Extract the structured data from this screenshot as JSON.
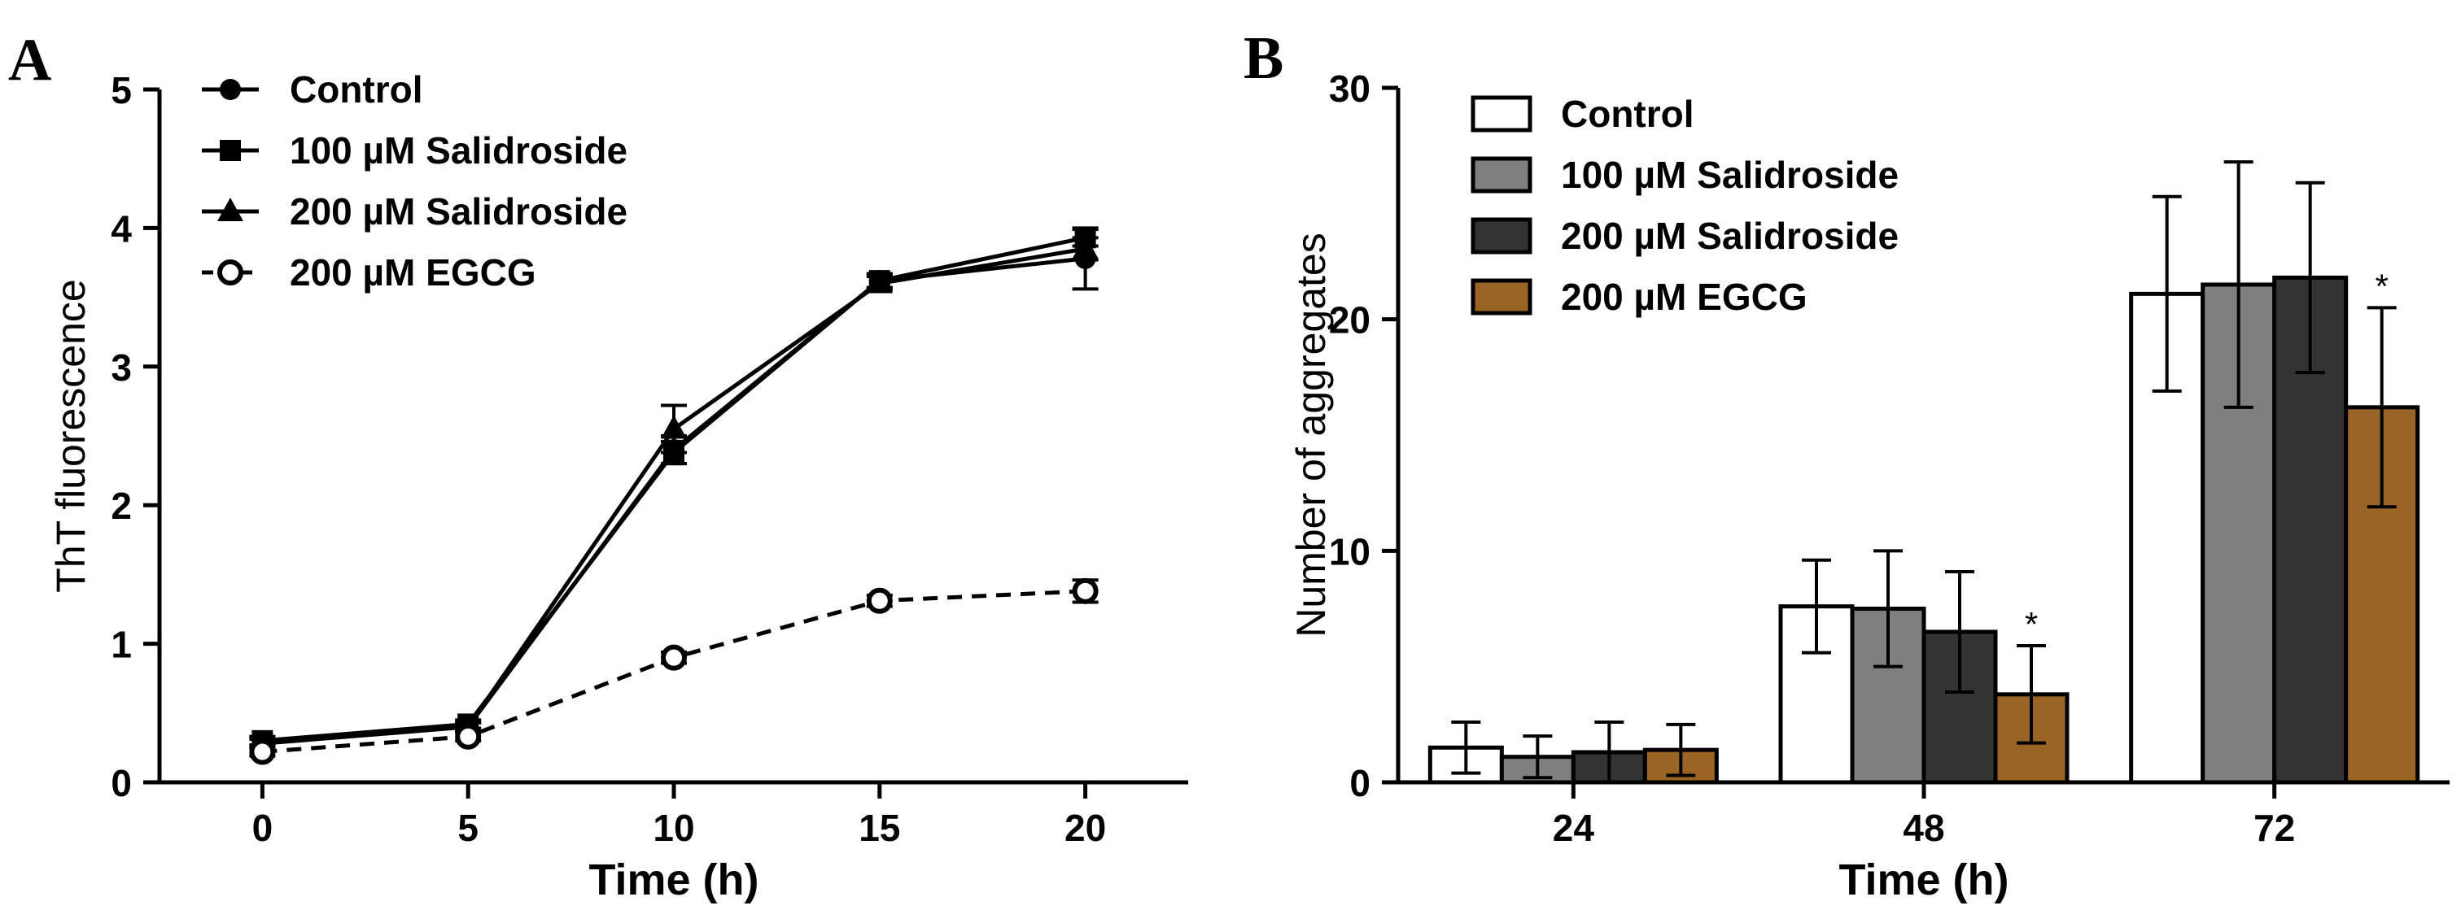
{
  "panels": {
    "a": {
      "letter": "A"
    },
    "b": {
      "letter": "B"
    }
  },
  "chart_data": [
    {
      "type": "line",
      "panel": "A",
      "title": "",
      "xlabel": "Time (h)",
      "ylabel": "ThT fluorescence",
      "x": [
        0,
        5,
        10,
        15,
        20
      ],
      "xticks": [
        "0",
        "5",
        "10",
        "15",
        "20"
      ],
      "xlim": [
        -2.5,
        22.5
      ],
      "yticks": [
        "0",
        "1",
        "2",
        "3",
        "4",
        "5"
      ],
      "ylim": [
        0,
        5
      ],
      "legend_position": "top-left",
      "series": [
        {
          "name": "Control",
          "marker": "filled-circle",
          "line": "solid",
          "values": [
            0.3,
            0.4,
            2.4,
            3.62,
            3.78
          ],
          "errors": [
            0.03,
            0.03,
            0.1,
            0.05,
            0.22
          ]
        },
        {
          "name": "100 µM Salidroside",
          "marker": "filled-square",
          "line": "solid",
          "values": [
            0.3,
            0.42,
            2.38,
            3.62,
            3.93
          ],
          "errors": [
            0.03,
            0.03,
            0.08,
            0.05,
            0.06
          ]
        },
        {
          "name": "200 µM Salidroside",
          "marker": "filled-triangle",
          "line": "solid",
          "values": [
            0.28,
            0.4,
            2.55,
            3.6,
            3.85
          ],
          "errors": [
            0.03,
            0.03,
            0.17,
            0.05,
            0.08
          ]
        },
        {
          "name": "200 µM EGCG",
          "marker": "open-circle",
          "line": "dashed",
          "values": [
            0.22,
            0.33,
            0.9,
            1.31,
            1.38
          ],
          "errors": [
            0.03,
            0.03,
            0.04,
            0.04,
            0.08
          ]
        }
      ]
    },
    {
      "type": "bar",
      "panel": "B",
      "title": "",
      "xlabel": "Time (h)",
      "ylabel": "Number of aggregates",
      "categories": [
        "24",
        "48",
        "72"
      ],
      "yticks": [
        "0",
        "10",
        "20",
        "30"
      ],
      "ylim": [
        0,
        30
      ],
      "legend_position": "top-left",
      "series": [
        {
          "name": "Control",
          "color": "#ffffff",
          "values": [
            1.5,
            7.6,
            21.1
          ],
          "errors": [
            1.1,
            2.0,
            4.2
          ]
        },
        {
          "name": "100 µM Salidroside",
          "color": "#7f7f7f",
          "values": [
            1.1,
            7.5,
            21.5
          ],
          "errors": [
            0.9,
            2.5,
            5.3
          ]
        },
        {
          "name": "200 µM Salidroside",
          "color": "#333333",
          "values": [
            1.3,
            6.5,
            21.8
          ],
          "errors": [
            1.3,
            2.6,
            4.1
          ]
        },
        {
          "name": "200 µM EGCG",
          "color": "#9a6524",
          "values": [
            1.4,
            3.8,
            16.2
          ],
          "errors": [
            1.1,
            2.1,
            4.3
          ]
        }
      ],
      "annotations": [
        {
          "category": "48",
          "series": "200 µM EGCG",
          "text": "*"
        },
        {
          "category": "72",
          "series": "200 µM EGCG",
          "text": "*"
        }
      ]
    }
  ]
}
